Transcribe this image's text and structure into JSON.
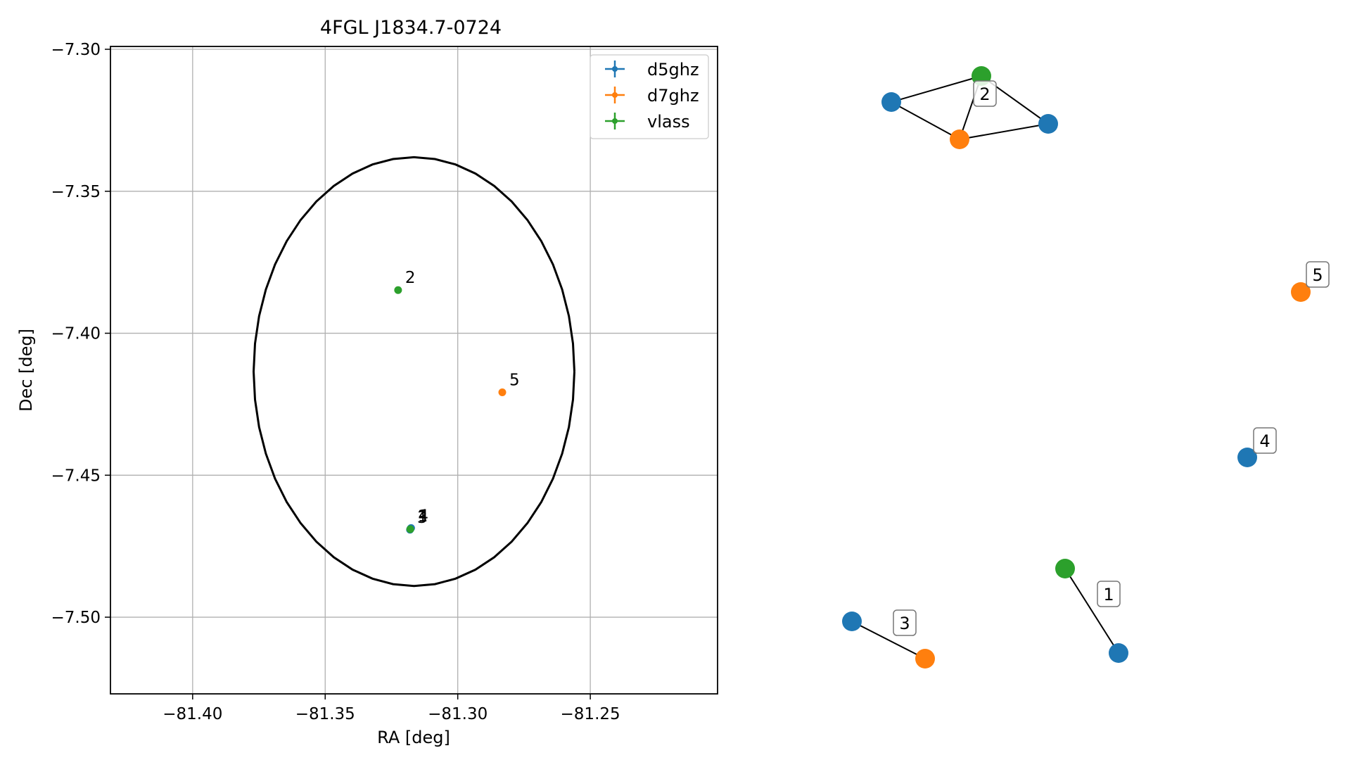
{
  "chart_data": [
    {
      "type": "scatter",
      "title": "4FGL J1834.7-0724",
      "xlabel": "RA [deg]",
      "ylabel": "Dec [deg]",
      "xlim": [
        -81.431,
        -81.202
      ],
      "ylim": [
        -7.527,
        -7.299
      ],
      "xticks": [
        -81.4,
        -81.35,
        -81.3,
        -81.25
      ],
      "yticks": [
        -7.3,
        -7.35,
        -7.4,
        -7.45,
        -7.5
      ],
      "xtick_labels": [
        "−81.40",
        "−81.35",
        "−81.30",
        "−81.25"
      ],
      "ytick_labels": [
        "−7.30",
        "−7.35",
        "−7.40",
        "−7.45",
        "−7.50"
      ],
      "grid": true,
      "legend_position": "upper right",
      "ellipse": {
        "center": [
          -81.3165,
          -7.4135
        ],
        "ra_half_width": 0.0605,
        "dec_half_height": 0.0755,
        "color": "#000000"
      },
      "series": [
        {
          "name": "d5ghz",
          "color": "#1f77b4",
          "points": [
            {
              "x": -81.3178,
              "y": -7.4688,
              "label": "1"
            },
            {
              "x": -81.318,
              "y": -7.4692,
              "label": "3"
            },
            {
              "x": -81.3176,
              "y": -7.4686,
              "label": "4"
            }
          ]
        },
        {
          "name": "d7ghz",
          "color": "#ff7f0e",
          "points": [
            {
              "x": -81.2832,
              "y": -7.4208,
              "label": "5"
            }
          ]
        },
        {
          "name": "vlass",
          "color": "#2ca02c",
          "points": [
            {
              "x": -81.3225,
              "y": -7.3848,
              "label": "2"
            },
            {
              "x": -81.3179,
              "y": -7.469,
              "label": ""
            }
          ]
        }
      ]
    },
    {
      "type": "network",
      "nodes": [
        {
          "id": "a",
          "color": "#1f77b4"
        },
        {
          "id": "b",
          "color": "#2ca02c"
        },
        {
          "id": "c",
          "color": "#1f77b4"
        },
        {
          "id": "d",
          "color": "#ff7f0e"
        },
        {
          "id": "e",
          "color": "#1f77b4"
        },
        {
          "id": "f",
          "color": "#ff7f0e"
        },
        {
          "id": "g",
          "color": "#1f77b4"
        },
        {
          "id": "h",
          "color": "#2ca02c"
        },
        {
          "id": "i",
          "color": "#1f77b4"
        },
        {
          "id": "j",
          "color": "#ff7f0e"
        }
      ],
      "edges": [
        [
          "a",
          "b"
        ],
        [
          "a",
          "d"
        ],
        [
          "b",
          "d"
        ],
        [
          "b",
          "c"
        ],
        [
          "d",
          "c"
        ],
        [
          "e",
          "f"
        ],
        [
          "g",
          "h"
        ]
      ],
      "group_labels": [
        "2",
        "3",
        "1",
        "4",
        "5"
      ]
    }
  ]
}
